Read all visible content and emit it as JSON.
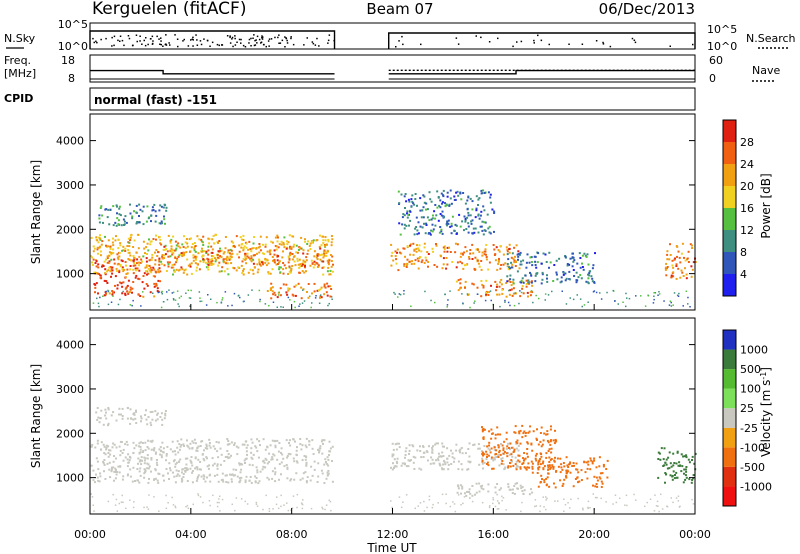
{
  "header": {
    "station": "Kerguelen (fitACF)",
    "beam": "Beam 07",
    "date": "06/Dec/2013"
  },
  "noise_panel": {
    "left_label": "N.Sky",
    "right_label": "N.Search",
    "left_ticks": [
      "10^5",
      "10^0"
    ],
    "right_ticks": [
      "10^5",
      "10^0"
    ]
  },
  "freq_panel": {
    "left_label_line1": "Freq.",
    "left_label_line2": "[MHz]",
    "left_ticks": [
      "18",
      "8"
    ],
    "right_label": "Nave",
    "right_ticks": [
      "60",
      "0"
    ],
    "freq_series": [
      {
        "t": 0,
        "mhz": 12.2
      },
      {
        "t": 2.9,
        "mhz": 12.2
      },
      {
        "t": 2.9,
        "mhz": 10.6
      },
      {
        "t": 9.7,
        "mhz": 10.6
      },
      {
        "t": 11.85,
        "mhz": 10.6
      },
      {
        "t": 16.9,
        "mhz": 10.6
      },
      {
        "t": 16.9,
        "mhz": 12.2
      },
      {
        "t": 24,
        "mhz": 12.2
      }
    ],
    "nave_series": [
      {
        "t": 11.85,
        "nave": 26
      },
      {
        "t": 24,
        "nave": 26
      }
    ]
  },
  "cpid": {
    "label": "CPID",
    "value": "normal (fast) -151"
  },
  "chart_data": [
    {
      "type": "heatmap",
      "name": "power",
      "ylabel": "Slant Range [km]",
      "xlabel": "",
      "xlim": [
        0,
        24
      ],
      "ylim": [
        180,
        4600
      ],
      "yticks": [
        "1000",
        "2000",
        "3000",
        "4000"
      ],
      "colorbar": {
        "label": "Power [dB]",
        "ticks": [
          "4",
          "8",
          "12",
          "16",
          "20",
          "24",
          "28"
        ],
        "colors": [
          "#1f1ff0",
          "#2f56b8",
          "#3e8f80",
          "#55c040",
          "#f0d020",
          "#f0a010",
          "#f06010",
          "#e02010"
        ]
      },
      "regions": [
        {
          "t0": 0.1,
          "t1": 2.8,
          "r0": 500,
          "r1": 1400,
          "level": 28
        },
        {
          "t0": 0.0,
          "t1": 9.6,
          "r0": 1000,
          "r1": 1900,
          "level": 20
        },
        {
          "t0": 2.8,
          "t1": 9.6,
          "r0": 1150,
          "r1": 1650,
          "level": 24
        },
        {
          "t0": 0.2,
          "t1": 3.0,
          "r0": 2100,
          "r1": 2600,
          "level": 10
        },
        {
          "t0": 7.0,
          "t1": 9.6,
          "r0": 450,
          "r1": 800,
          "level": 24
        },
        {
          "t0": 11.9,
          "t1": 17.0,
          "r0": 1100,
          "r1": 1700,
          "level": 24
        },
        {
          "t0": 12.2,
          "t1": 16.0,
          "r0": 1900,
          "r1": 2900,
          "level": 8
        },
        {
          "t0": 14.5,
          "t1": 17.5,
          "r0": 500,
          "r1": 900,
          "level": 24
        },
        {
          "t0": 16.5,
          "t1": 20.0,
          "r0": 800,
          "r1": 1500,
          "level": 8
        },
        {
          "t0": 22.8,
          "t1": 24.0,
          "r0": 900,
          "r1": 1700,
          "level": 24
        }
      ]
    },
    {
      "type": "heatmap",
      "name": "velocity",
      "ylabel": "Slant Range [km]",
      "xlabel": "Time UT",
      "xlim": [
        0,
        24
      ],
      "ylim": [
        180,
        4600
      ],
      "xticks": [
        "00:00",
        "04:00",
        "08:00",
        "12:00",
        "16:00",
        "20:00",
        "00:00"
      ],
      "yticks": [
        "1000",
        "2000",
        "3000",
        "4000"
      ],
      "colorbar": {
        "label": "Velocity [m s^-1]",
        "ticks": [
          "1000",
          "500",
          "100",
          "25",
          "-25",
          "-100",
          "-500",
          "-1000"
        ],
        "colors": [
          "#2030c0",
          "#3a7a3a",
          "#55bb30",
          "#7ce05a",
          "#c8c8c0",
          "#f0a010",
          "#f07010",
          "#e03010",
          "#f01010"
        ]
      },
      "regions": [
        {
          "t0": 0.0,
          "t1": 9.6,
          "r0": 900,
          "r1": 1900,
          "level": 0
        },
        {
          "t0": 0.2,
          "t1": 3.0,
          "r0": 2200,
          "r1": 2600,
          "level": 0
        },
        {
          "t0": 11.9,
          "t1": 17.0,
          "r0": 1200,
          "r1": 1800,
          "level": 0
        },
        {
          "t0": 14.5,
          "t1": 17.5,
          "r0": 600,
          "r1": 900,
          "level": 0
        },
        {
          "t0": 15.5,
          "t1": 18.5,
          "r0": 1200,
          "r1": 2200,
          "level": -100
        },
        {
          "t0": 17.5,
          "t1": 20.5,
          "r0": 800,
          "r1": 1500,
          "level": -100
        },
        {
          "t0": 22.5,
          "t1": 24.0,
          "r0": 900,
          "r1": 1700,
          "level": 300
        }
      ]
    }
  ]
}
